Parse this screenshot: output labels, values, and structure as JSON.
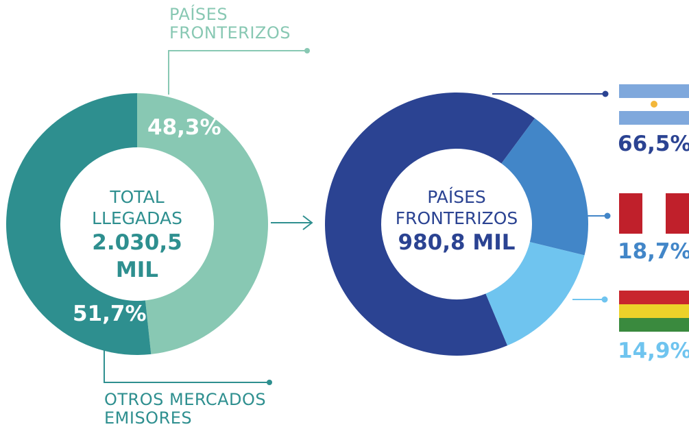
{
  "chart_data": [
    {
      "type": "pie",
      "categories": [
        "PAÍSES FRONTERIZOS",
        "OTROS MERCADOS EMISORES"
      ],
      "values": [
        48.3,
        51.7
      ],
      "value_labels": [
        "48,3%",
        "51,7%"
      ],
      "colors": [
        "#88c8b3",
        "#2e8f8f"
      ],
      "center_label": "TOTAL LLEGADAS",
      "center_value": "2.030,5 MIL"
    },
    {
      "type": "pie",
      "values": [
        66.5,
        18.7,
        14.9
      ],
      "value_labels": [
        "66,5%",
        "18,7%",
        "14,9%"
      ],
      "colors": [
        "#2b4392",
        "#4286c8",
        "#6fc4ef"
      ],
      "center_label": "PAÍSES FRONTERIZOS",
      "center_value": "980,8 MIL"
    }
  ]
}
